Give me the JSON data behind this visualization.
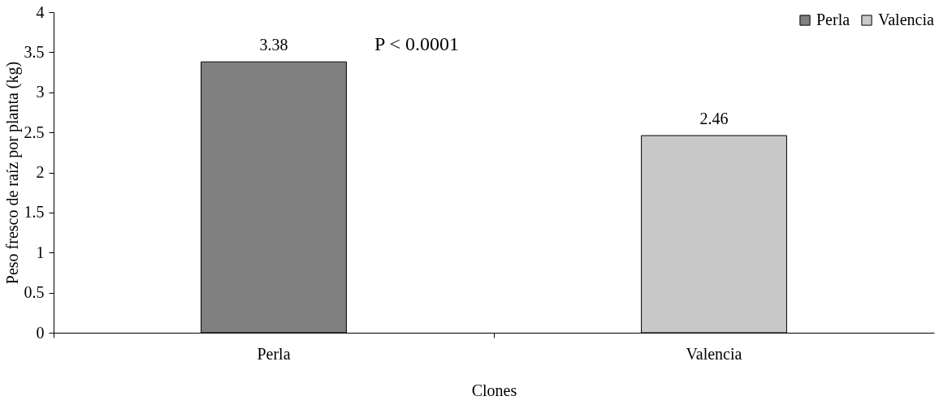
{
  "chart_data": {
    "type": "bar",
    "xlabel": "Clones",
    "ylabel": "Peso fresco de raíz por planta (kg)",
    "categories": [
      "Perla",
      "Valencia"
    ],
    "series": [
      {
        "name": "Perla",
        "color": "#808080",
        "values": [
          3.38,
          null
        ]
      },
      {
        "name": "Valencia",
        "color": "#c8c8c8",
        "values": [
          null,
          2.46
        ]
      }
    ],
    "ylim": [
      0,
      4
    ],
    "yticks": [
      0,
      0.5,
      1,
      1.5,
      2,
      2.5,
      3,
      3.5,
      4
    ],
    "data_labels": true,
    "legend": "top right",
    "grid": false,
    "annotations": [
      "P < 0.0001"
    ]
  }
}
